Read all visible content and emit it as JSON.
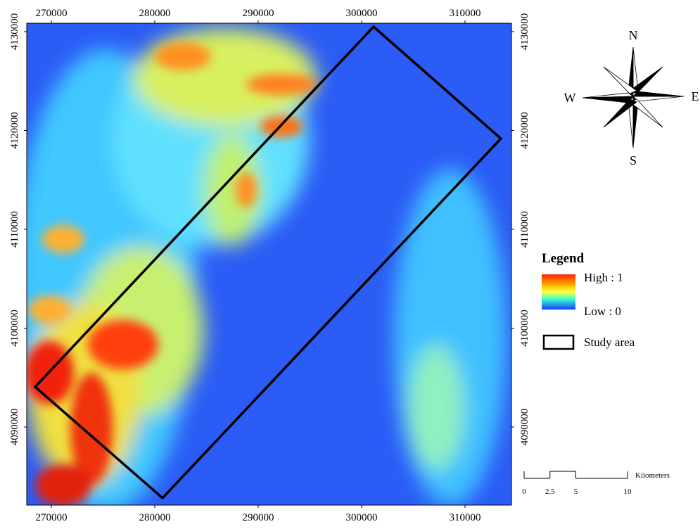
{
  "map": {
    "xlim": [
      267620,
      314490
    ],
    "ylim": [
      4082100,
      4130850
    ],
    "xticks": [
      270000,
      280000,
      290000,
      300000,
      310000
    ],
    "yticks": [
      4090000,
      4100000,
      4110000,
      4120000,
      4130000
    ]
  },
  "compass": {
    "north": "N",
    "east": "E",
    "south": "S",
    "west": "W"
  },
  "legend": {
    "title": "Legend",
    "high": "High : 1",
    "low": "Low : 0",
    "study_area": "Study area"
  },
  "scale_bar": {
    "ticks": [
      0,
      2.5,
      5,
      10
    ],
    "unit": "Kilometers"
  }
}
